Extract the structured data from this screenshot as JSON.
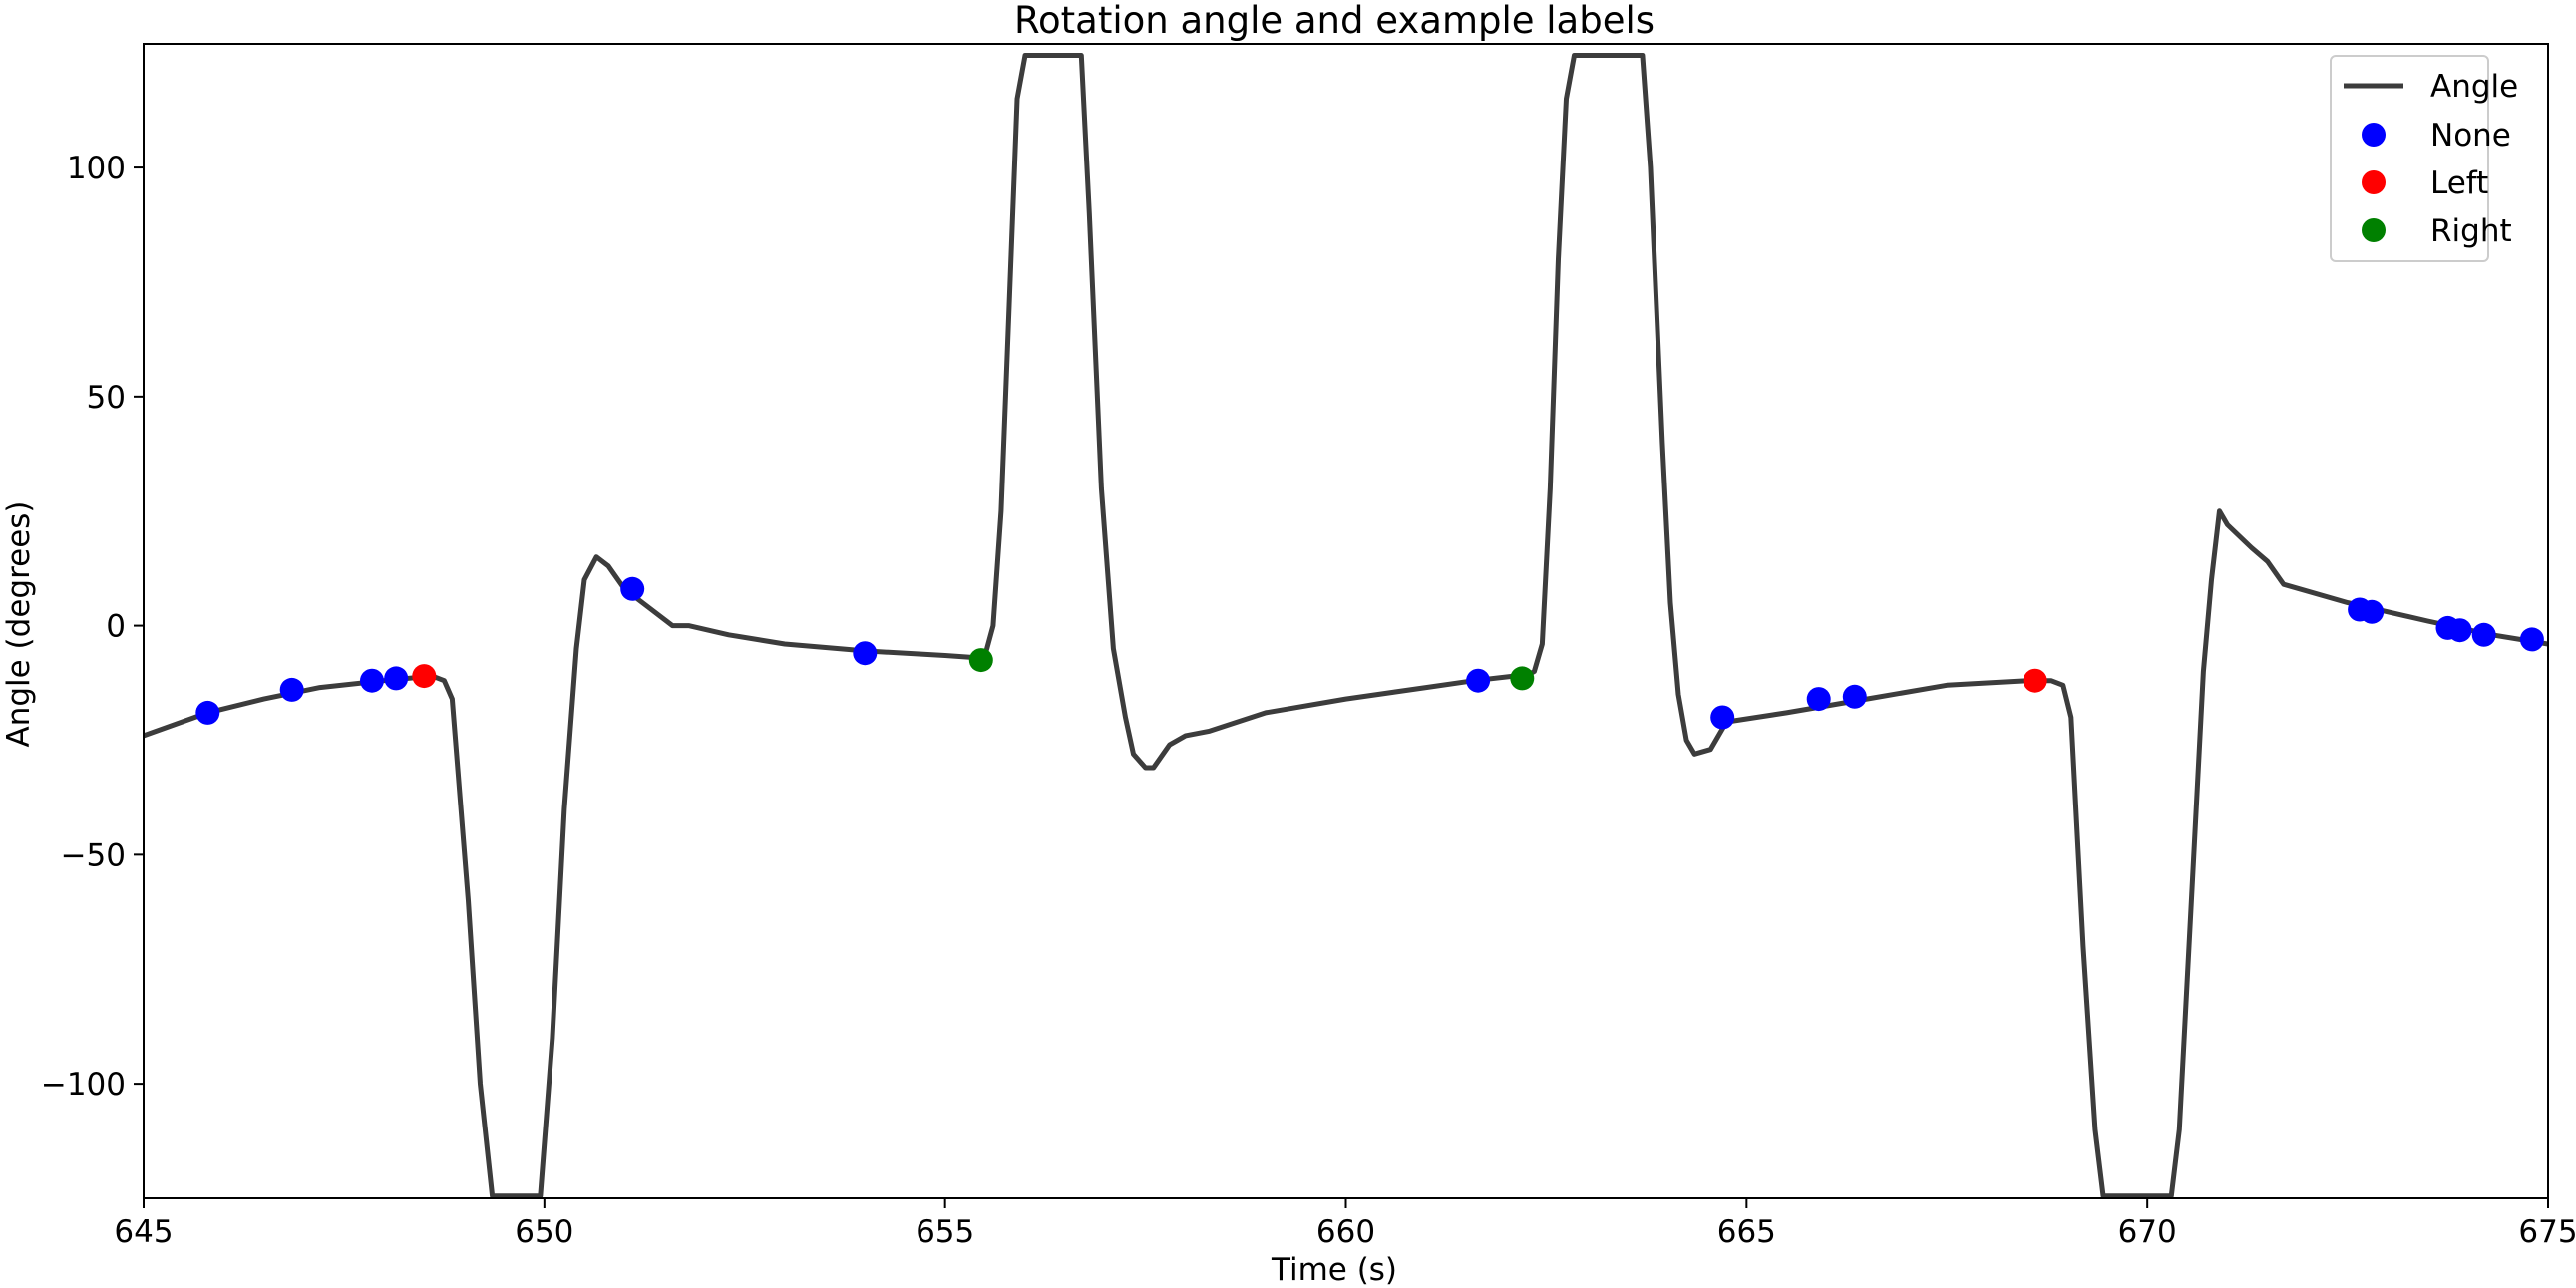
{
  "chart_data": {
    "type": "line",
    "title": "Rotation angle and example labels",
    "xlabel": "Time (s)",
    "ylabel": "Angle (degrees)",
    "xlim": [
      645,
      675
    ],
    "ylim": [
      -125,
      127
    ],
    "xticks": [
      645,
      650,
      655,
      660,
      665,
      670,
      675
    ],
    "yticks": [
      100,
      50,
      0,
      -50,
      -100
    ],
    "ytick_labels": [
      "100",
      "50",
      "0",
      "−50",
      "−100"
    ],
    "grid": false,
    "legend_position": "top-right",
    "series": [
      {
        "name": "Angle",
        "kind": "line",
        "color": "#3c3c3c",
        "x": [
          645.0,
          645.8,
          646.5,
          647.2,
          648.0,
          648.6,
          648.75,
          648.85,
          649.05,
          649.2,
          649.35,
          649.7,
          649.8,
          649.95,
          650.1,
          650.25,
          650.4,
          650.5,
          650.65,
          650.8,
          651.0,
          651.3,
          651.6,
          651.8,
          652.3,
          653.0,
          654.0,
          655.0,
          655.4,
          655.5,
          655.6,
          655.7,
          655.8,
          655.9,
          656.0,
          656.1,
          656.6,
          656.7,
          656.8,
          656.95,
          657.1,
          657.25,
          657.35,
          657.5,
          657.6,
          657.8,
          658.0,
          658.3,
          659.0,
          660.0,
          661.0,
          661.6,
          662.1,
          662.25,
          662.35,
          662.45,
          662.55,
          662.65,
          662.75,
          662.85,
          662.95,
          663.6,
          663.7,
          663.8,
          663.95,
          664.05,
          664.15,
          664.25,
          664.35,
          664.55,
          664.75,
          665.5,
          666.5,
          667.5,
          668.5,
          668.8,
          668.95,
          669.05,
          669.2,
          669.35,
          669.45,
          669.6,
          669.7,
          669.8,
          670.3,
          670.4,
          670.55,
          670.7,
          670.8,
          670.9,
          671.0,
          671.3,
          671.5,
          671.7,
          672.5,
          673.5,
          674.3,
          675.0
        ],
        "y": [
          -24,
          -19,
          -16,
          -13.5,
          -12,
          -11,
          -12,
          -16,
          -60,
          -100,
          -124.5,
          -124.5,
          -124.5,
          -124.5,
          -90,
          -40,
          -5,
          10,
          15,
          13,
          8,
          4,
          0,
          0,
          -2,
          -4,
          -5.5,
          -6.5,
          -7,
          -6.5,
          0,
          25,
          70,
          115,
          124.5,
          124.5,
          124.5,
          124.5,
          90,
          30,
          -5,
          -20,
          -28,
          -31,
          -31,
          -26,
          -24,
          -23,
          -19,
          -16,
          -13.5,
          -12,
          -11,
          -11,
          -10,
          -4,
          30,
          80,
          115,
          124.5,
          124.5,
          124.5,
          124.5,
          100,
          40,
          5,
          -15,
          -25,
          -28,
          -27,
          -21,
          -19,
          -16,
          -13,
          -12,
          -12,
          -13,
          -20,
          -70,
          -110,
          -124.5,
          -124.5,
          -124.5,
          -124.5,
          -124.5,
          -110,
          -60,
          -10,
          10,
          25,
          22,
          17,
          14,
          9,
          5,
          1,
          -2,
          -4
        ]
      },
      {
        "name": "None",
        "kind": "scatter",
        "color": "#0000ff",
        "x": [
          645.8,
          646.85,
          647.85,
          648.15,
          651.1,
          654.0,
          661.65,
          664.7,
          665.9,
          666.35,
          672.65,
          672.8,
          673.75,
          673.9,
          674.2,
          674.8
        ],
        "y": [
          -19,
          -14,
          -12,
          -11.5,
          8,
          -6,
          -12,
          -20,
          -16,
          -15.5,
          3.5,
          3,
          -0.5,
          -1,
          -2,
          -3
        ]
      },
      {
        "name": "Left",
        "kind": "scatter",
        "color": "#ff0000",
        "x": [
          648.5,
          668.6
        ],
        "y": [
          -11,
          -12
        ]
      },
      {
        "name": "Right",
        "kind": "scatter",
        "color": "#008000",
        "x": [
          655.45,
          662.2
        ],
        "y": [
          -7.5,
          -11.5
        ]
      }
    ]
  }
}
